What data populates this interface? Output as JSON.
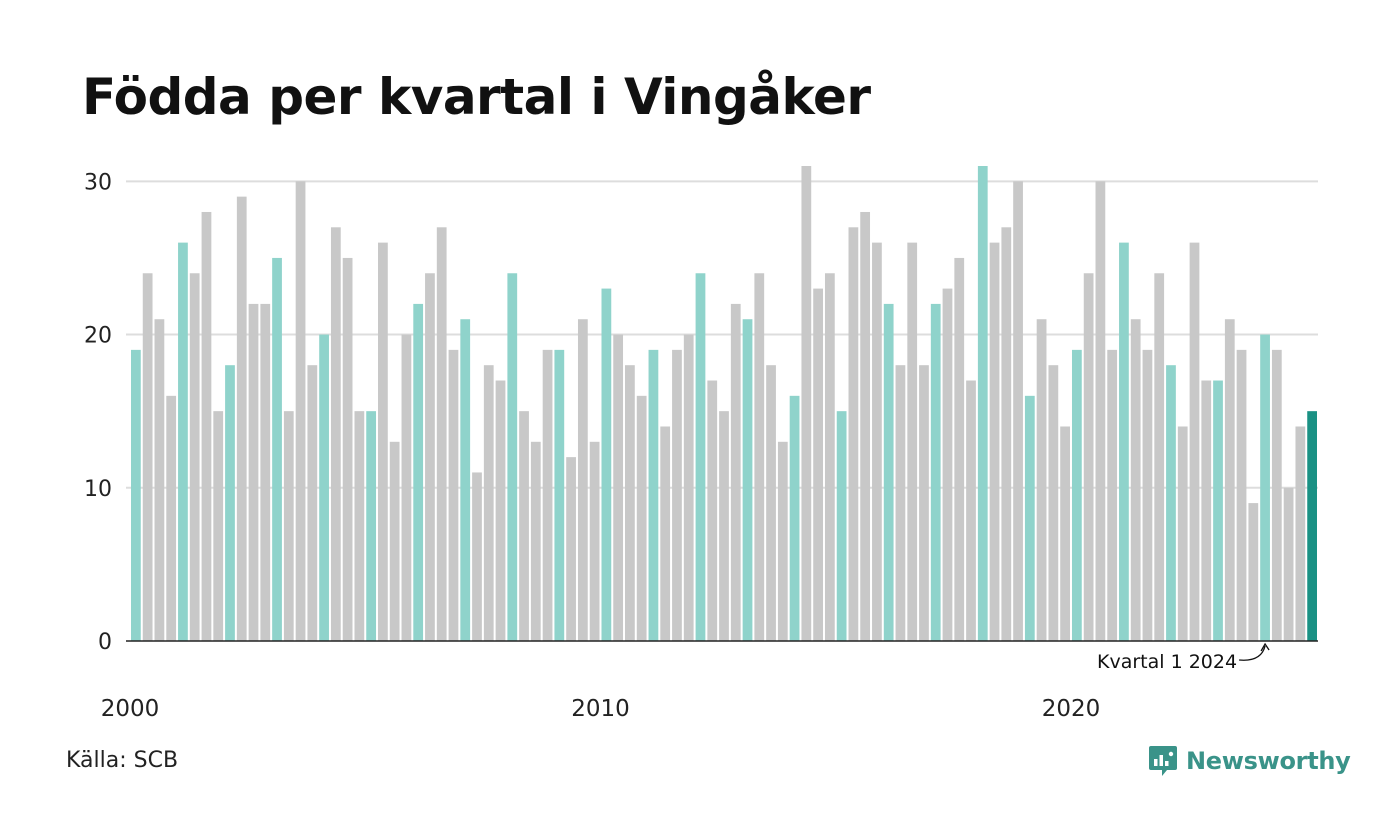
{
  "header": {
    "title": "Födda per kvartal i Vingåker"
  },
  "footer": {
    "source": "Källa: SCB",
    "brand": "Newsworthy"
  },
  "colors": {
    "q1": "#8fd3cb",
    "other": "#c8c8c8",
    "highlight": "#1a9184",
    "grid": "#dddddd",
    "axis": "#222222"
  },
  "chart_data": {
    "type": "bar",
    "title": "Födda per kvartal i Vingåker",
    "xlabel": "",
    "ylabel": "",
    "ylim": [
      0,
      31
    ],
    "yticks": [
      0,
      10,
      20,
      30
    ],
    "xtick_labels": [
      {
        "label": "2000",
        "index": 0
      },
      {
        "label": "2010",
        "index": 40
      },
      {
        "label": "2020",
        "index": 80
      }
    ],
    "annotation": {
      "text": "Kvartal 1 2024",
      "index": 96
    },
    "grid": true,
    "categories": [
      "2000 K1",
      "2000 K2",
      "2000 K3",
      "2000 K4",
      "2001 K1",
      "2001 K2",
      "2001 K3",
      "2001 K4",
      "2002 K1",
      "2002 K2",
      "2002 K3",
      "2002 K4",
      "2003 K1",
      "2003 K2",
      "2003 K3",
      "2003 K4",
      "2004 K1",
      "2004 K2",
      "2004 K3",
      "2004 K4",
      "2005 K1",
      "2005 K2",
      "2005 K3",
      "2005 K4",
      "2006 K1",
      "2006 K2",
      "2006 K3",
      "2006 K4",
      "2007 K1",
      "2007 K2",
      "2007 K3",
      "2007 K4",
      "2008 K1",
      "2008 K2",
      "2008 K3",
      "2008 K4",
      "2009 K1",
      "2009 K2",
      "2009 K3",
      "2009 K4",
      "2010 K1",
      "2010 K2",
      "2010 K3",
      "2010 K4",
      "2011 K1",
      "2011 K2",
      "2011 K3",
      "2011 K4",
      "2012 K1",
      "2012 K2",
      "2012 K3",
      "2012 K4",
      "2013 K1",
      "2013 K2",
      "2013 K3",
      "2013 K4",
      "2014 K1",
      "2014 K2",
      "2014 K3",
      "2014 K4",
      "2015 K1",
      "2015 K2",
      "2015 K3",
      "2015 K4",
      "2016 K1",
      "2016 K2",
      "2016 K3",
      "2016 K4",
      "2017 K1",
      "2017 K2",
      "2017 K3",
      "2017 K4",
      "2018 K1",
      "2018 K2",
      "2018 K3",
      "2018 K4",
      "2019 K1",
      "2019 K2",
      "2019 K3",
      "2019 K4",
      "2020 K1",
      "2020 K2",
      "2020 K3",
      "2020 K4",
      "2021 K1",
      "2021 K2",
      "2021 K3",
      "2021 K4",
      "2022 K1",
      "2022 K2",
      "2022 K3",
      "2022 K4",
      "2023 K1",
      "2023 K2",
      "2023 K3",
      "2023 K4",
      "2024 K1",
      "2024 K2",
      "2024 K3",
      "2024 K4",
      "2025 K1"
    ],
    "values": [
      19,
      24,
      21,
      16,
      26,
      24,
      28,
      15,
      18,
      29,
      22,
      22,
      25,
      15,
      30,
      18,
      20,
      27,
      25,
      15,
      15,
      26,
      13,
      20,
      22,
      24,
      27,
      19,
      21,
      11,
      18,
      17,
      24,
      15,
      13,
      19,
      19,
      12,
      21,
      13,
      23,
      20,
      18,
      16,
      19,
      14,
      19,
      20,
      24,
      17,
      15,
      22,
      21,
      24,
      18,
      13,
      16,
      31,
      23,
      24,
      15,
      27,
      28,
      26,
      22,
      18,
      26,
      18,
      22,
      23,
      25,
      17,
      31,
      26,
      27,
      30,
      16,
      21,
      18,
      14,
      19,
      24,
      30,
      19,
      26,
      21,
      19,
      24,
      18,
      14,
      26,
      17,
      17,
      21,
      19,
      9,
      20,
      19,
      10,
      14,
      15
    ]
  }
}
